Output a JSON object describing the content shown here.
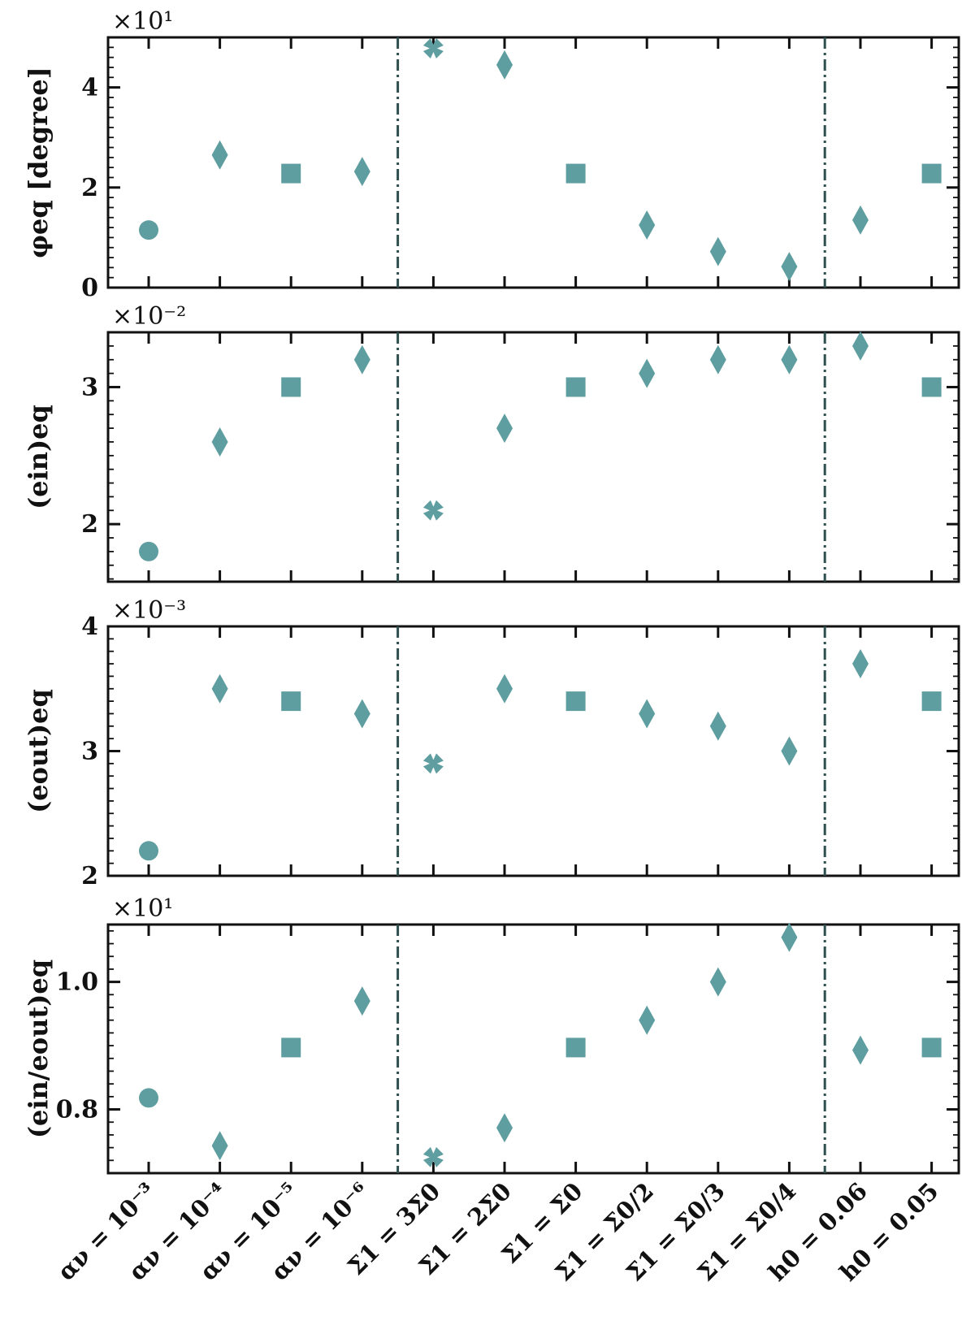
{
  "chart_data": {
    "type": "scatter",
    "marker_color": "#5f9ea0",
    "divider_color": "#2f4f4f",
    "categories": [
      "αν = 10⁻³",
      "αν = 10⁻⁴",
      "αν = 10⁻⁵",
      "αν = 10⁻⁶",
      "Σ1 = 3Σ0",
      "Σ1 = 2Σ0",
      "Σ1 = Σ0",
      "Σ1 = Σ0/2",
      "Σ1 = Σ0/3",
      "Σ1 = Σ0/4",
      "h0 = 0.06",
      "h0 = 0.05"
    ],
    "markers": [
      "circle",
      "diamond",
      "square",
      "diamond",
      "cross",
      "diamond",
      "square",
      "diamond",
      "diamond",
      "diamond",
      "diamond",
      "square"
    ],
    "dividers_after_index": [
      3.5,
      9.5
    ],
    "panels": [
      {
        "ylabel": "φeq [degree]",
        "multiplier": "×10¹",
        "ylim": [
          0,
          5
        ],
        "yticks": [
          0,
          2,
          4
        ],
        "ytick_labels": [
          "0",
          "2",
          "4"
        ],
        "values": [
          1.15,
          2.65,
          2.28,
          2.32,
          4.78,
          4.45,
          2.28,
          1.25,
          0.72,
          0.42,
          1.35,
          2.28
        ]
      },
      {
        "ylabel": "(ein)eq",
        "multiplier": "×10⁻²",
        "ylim": [
          1.58,
          3.4
        ],
        "yticks": [
          2,
          3
        ],
        "ytick_labels": [
          "2",
          "3"
        ],
        "values": [
          1.8,
          2.6,
          3.0,
          3.2,
          2.1,
          2.7,
          3.0,
          3.1,
          3.2,
          3.2,
          3.3,
          3.0
        ]
      },
      {
        "ylabel": "(eout)eq",
        "multiplier": "×10⁻³",
        "ylim": [
          2.0,
          4.0
        ],
        "yticks": [
          2,
          3,
          4
        ],
        "ytick_labels": [
          "2",
          "3",
          "4"
        ],
        "values": [
          2.2,
          3.5,
          3.4,
          3.3,
          2.9,
          3.5,
          3.4,
          3.3,
          3.2,
          3.0,
          3.7,
          3.4
        ]
      },
      {
        "ylabel": "(ein/eout)eq",
        "multiplier": "×10¹",
        "ylim": [
          0.7,
          1.09
        ],
        "yticks": [
          0.8,
          1.0
        ],
        "ytick_labels": [
          "0.8",
          "1.0"
        ],
        "values": [
          0.818,
          0.743,
          0.897,
          0.97,
          0.725,
          0.771,
          0.897,
          0.94,
          1.0,
          1.07,
          0.893,
          0.897
        ]
      }
    ]
  }
}
